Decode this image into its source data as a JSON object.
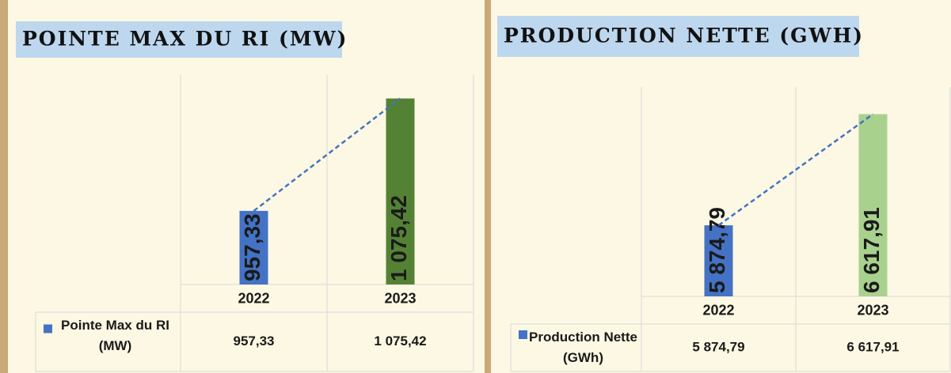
{
  "chart_data": [
    {
      "type": "bar",
      "title": "POINTE MAX DU RI (MW)",
      "categories": [
        "2022",
        "2023"
      ],
      "series": [
        {
          "name": "Pointe Max du RI (MW)",
          "color": "#4472c4",
          "point_colors": [
            "#4472c4",
            "#548235"
          ],
          "values": [
            957.33,
            1075.42
          ],
          "value_labels": [
            "957,33",
            "1 075,42"
          ]
        }
      ],
      "ylim": [
        880,
        1100
      ],
      "trendline": true,
      "data_table": true
    },
    {
      "type": "bar",
      "title": "PRODUCTION NETTE (GWH)",
      "categories": [
        "2022",
        "2023"
      ],
      "series": [
        {
          "name": "Production Nette (GWh)",
          "color": "#4472c4",
          "point_colors": [
            "#4472c4",
            "#a9d18e"
          ],
          "values": [
            5874.79,
            6617.91
          ],
          "value_labels": [
            "5 874,79",
            "6 617,91"
          ]
        }
      ],
      "ylim": [
        5400,
        6800
      ],
      "trendline": true,
      "data_table": true
    }
  ]
}
